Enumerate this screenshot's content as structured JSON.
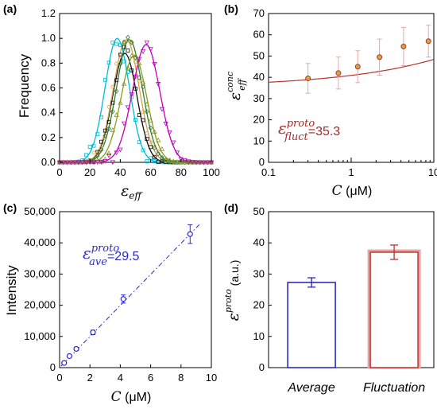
{
  "colors": {
    "red": "#b5342a",
    "redLight": "#e9a5a5",
    "redText": "#a52a2a",
    "blue": "#2a2acf",
    "blueBar": "#1f1fbf",
    "amber": "#d6a24a",
    "green": "#2f7a2f",
    "cyan": "#00bcd4",
    "black": "#111111",
    "olive": "#8a9a1a",
    "magenta": "#c000c0"
  },
  "panels": {
    "a": {
      "label": "(a)",
      "ylabel": "Frequency",
      "xlabel_sym": "ε",
      "xlabel_sub": "eff"
    },
    "b": {
      "label": "(b)",
      "ylabel_sym": "ε",
      "ylabel_sup": "conc",
      "ylabel_sub": "eff",
      "xlabel_sym": "C",
      "xlabel_unit": " (μM)",
      "annot_sym": "ε",
      "annot_sup": "proto",
      "annot_sub": "fluct",
      "annot_val": "=35.3"
    },
    "c": {
      "label": "(c)",
      "ylabel": "Intensity",
      "xlabel_sym": "C",
      "xlabel_unit": " (μM)",
      "annot_sym": "ε",
      "annot_sup": "proto",
      "annot_sub": "ave",
      "annot_val": "=29.5"
    },
    "d": {
      "label": "(d)",
      "ylabel_sym": "ε",
      "ylabel_sup": "proto",
      "ylabel_unit": " (a.u.)"
    }
  },
  "chart_data": [
    {
      "id": "a",
      "type": "line",
      "ylabel": "Frequency",
      "xlim": [
        0,
        100
      ],
      "ylim": [
        0,
        1.2
      ],
      "xticks": [
        0,
        20,
        40,
        60,
        80,
        100
      ],
      "yticks": [
        0.0,
        0.2,
        0.4,
        0.6,
        0.8,
        1.0,
        1.2
      ],
      "ytick_labels": [
        "0.0",
        "0.2",
        "0.4",
        "0.6",
        "0.8",
        "1.0",
        "1.2"
      ],
      "series": [
        {
          "color": "cyan",
          "marker": "square",
          "mu": 38,
          "sigma": 8.0,
          "peak": 1.0
        },
        {
          "color": "black",
          "marker": "square",
          "mu": 43,
          "sigma": 8.0,
          "peak": 0.88
        },
        {
          "color": "amber",
          "marker": "circle",
          "mu": 44,
          "sigma": 8.5,
          "peak": 0.99
        },
        {
          "color": "green",
          "marker": "diamond",
          "mu": 46,
          "sigma": 8.5,
          "peak": 0.99
        },
        {
          "color": "olive",
          "marker": "triangle-up",
          "mu": 49,
          "sigma": 8.5,
          "peak": 0.86
        },
        {
          "color": "magenta",
          "marker": "triangle-down",
          "mu": 57,
          "sigma": 9.0,
          "peak": 0.95
        }
      ]
    },
    {
      "id": "b",
      "type": "scatter",
      "xscale": "log",
      "xlim": [
        0.1,
        10
      ],
      "ylim": [
        0,
        70
      ],
      "xticks": [
        0.1,
        1,
        10
      ],
      "xtick_labels": [
        "0.1",
        "1",
        "10"
      ],
      "yticks": [
        0,
        10,
        20,
        30,
        40,
        50,
        60,
        70
      ],
      "points": [
        {
          "x": 0.3,
          "y": 39.5,
          "err": 7.0
        },
        {
          "x": 0.7,
          "y": 42.0,
          "err": 7.5
        },
        {
          "x": 1.2,
          "y": 45.0,
          "err": 7.5
        },
        {
          "x": 2.2,
          "y": 49.5,
          "err": 8.5
        },
        {
          "x": 4.3,
          "y": 54.5,
          "err": 9.0
        },
        {
          "x": 8.6,
          "y": 57.0,
          "err": 7.5
        }
      ],
      "fit": {
        "a": 35.3,
        "b": 5.6,
        "p": 0.37
      }
    },
    {
      "id": "c",
      "type": "scatter",
      "ylabel": "Intensity",
      "xlim": [
        0,
        10
      ],
      "ylim": [
        0,
        50000
      ],
      "xticks": [
        0,
        2,
        4,
        6,
        8,
        10
      ],
      "yticks": [
        0,
        10000,
        20000,
        30000,
        40000,
        50000
      ],
      "ytick_labels": [
        "0",
        "10,000",
        "20,000",
        "30,000",
        "40,000",
        "50,000"
      ],
      "points": [
        {
          "x": 0.3,
          "y": 1500,
          "err": 400
        },
        {
          "x": 0.65,
          "y": 3700,
          "err": 400
        },
        {
          "x": 1.1,
          "y": 6000,
          "err": 500
        },
        {
          "x": 2.2,
          "y": 11300,
          "err": 700
        },
        {
          "x": 4.2,
          "y": 22000,
          "err": 1300
        },
        {
          "x": 8.6,
          "y": 42800,
          "err": 3000
        }
      ],
      "fit": {
        "slope": 4980,
        "intercept": 0
      }
    },
    {
      "id": "d",
      "type": "bar",
      "ylim": [
        0,
        50
      ],
      "yticks": [
        0,
        10,
        20,
        30,
        40,
        50
      ],
      "categories": [
        "Average",
        "Fluctuation"
      ],
      "values": [
        27.3,
        37.0
      ],
      "errors": [
        1.5,
        2.3
      ]
    }
  ]
}
